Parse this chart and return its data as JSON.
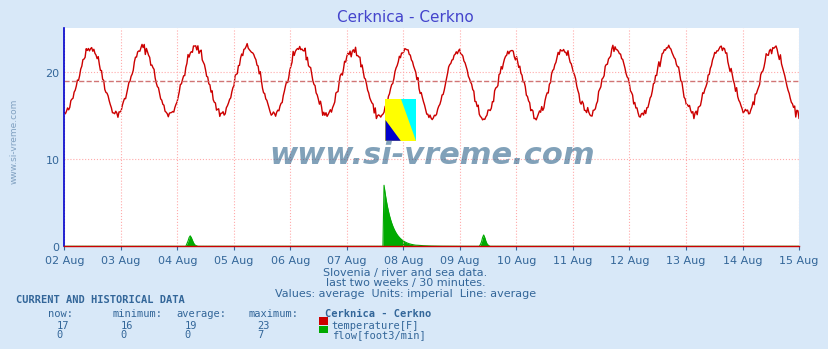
{
  "title": "Cerknica - Cerkno",
  "title_color": "#4444cc",
  "bg_color": "#d8e8f8",
  "plot_bg_color": "#ffffff",
  "grid_color": "#ffaaaa",
  "x_labels": [
    "02 Aug",
    "03 Aug",
    "04 Aug",
    "05 Aug",
    "06 Aug",
    "07 Aug",
    "08 Aug",
    "09 Aug",
    "10 Aug",
    "11 Aug",
    "12 Aug",
    "13 Aug",
    "14 Aug",
    "15 Aug"
  ],
  "ylim": [
    0,
    25
  ],
  "temp_color": "#cc0000",
  "flow_color": "#00aa00",
  "avg_line_color": "#cc6666",
  "avg_value": 19,
  "temp_yticks": [
    0,
    10,
    20
  ],
  "watermark_text": "www.si-vreme.com",
  "watermark_color": "#1a5580",
  "subtitle_lines": [
    "Slovenia / river and sea data.",
    "last two weeks / 30 minutes.",
    "Values: average  Units: imperial  Line: average"
  ],
  "subtitle_color": "#336699",
  "table_header": "CURRENT AND HISTORICAL DATA",
  "table_color": "#336699",
  "table_cols": [
    "now:",
    "minimum:",
    "average:",
    "maximum:",
    "Cerknica - Cerkno"
  ],
  "table_row1": [
    "17",
    "16",
    "19",
    "23"
  ],
  "table_row2": [
    "0",
    "0",
    "0",
    "7"
  ],
  "legend_items": [
    "temperature[F]",
    "flow[foot3/min]"
  ],
  "legend_colors": [
    "#cc0000",
    "#00aa00"
  ],
  "left_spine_color": "#0000cc",
  "bottom_spine_color": "#cc0000"
}
